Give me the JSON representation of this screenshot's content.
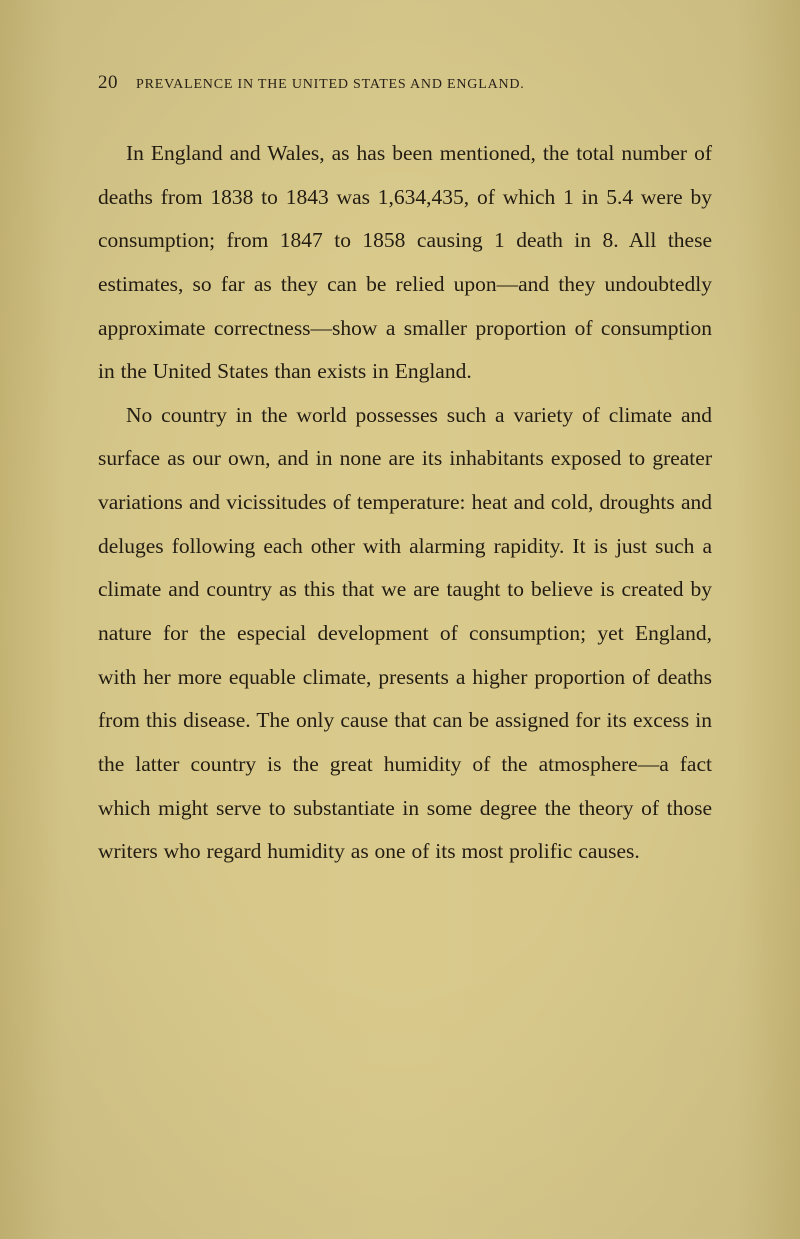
{
  "page": {
    "number": "20",
    "running_title": "PREVALENCE IN THE UNITED STATES AND ENGLAND.",
    "paragraphs": [
      "In England and Wales, as has been mentioned, the total number of deaths from 1838 to 1843 was 1,634,435, of which 1 in 5.4 were by consumption; from 1847 to 1858 causing 1 death in 8. All these estimates, so far as they can be relied upon—and they undoubtedly approximate correctness—show a smaller proportion of consumption in the United States than exists in England.",
      "No country in the world possesses such a variety of climate and surface as our own, and in none are its inhabitants exposed to greater variations and vicissitudes of temperature: heat and cold, droughts and deluges following each other with alarming rapidity. It is just such a climate and country as this that we are taught to believe is created by nature for the especial development of consumption; yet England, with her more equable climate, presents a higher proportion of deaths from this disease. The only cause that can be assigned for its excess in the latter country is the great humidity of the atmosphere—a fact which might serve to substantiate in some degree the theory of those writers who regard humidity as one of its most prolific causes."
    ]
  },
  "styling": {
    "background_color": "#d4c487",
    "text_color": "#231c12",
    "header_color": "#2a2218",
    "body_font_size": 21.5,
    "body_line_height": 2.03,
    "header_font_size": 14,
    "page_number_font_size": 19,
    "text_indent": 28
  }
}
